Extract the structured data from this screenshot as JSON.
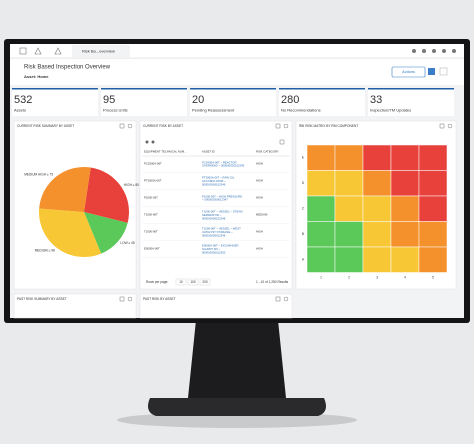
{
  "toolbar": {
    "tab": "Risk Ba...overview"
  },
  "header": {
    "title": "Risk Based Inspection Overview",
    "asset": "Asset: Home",
    "actions": "Actions"
  },
  "kpis": [
    {
      "value": "532",
      "label": "Assets"
    },
    {
      "value": "95",
      "label": "Process Units"
    },
    {
      "value": "20",
      "label": "Pending Reassessment"
    },
    {
      "value": "280",
      "label": "No Recommendations"
    },
    {
      "value": "33",
      "label": "Inspection/TM Updates"
    }
  ],
  "pie_panel": {
    "title": "CURRENT RISK SUMMARY BY ASSET",
    "chart_data": {
      "type": "pie",
      "slices": [
        {
          "label": "HIGH ≥ 80",
          "value": 80,
          "color": "#e8413c"
        },
        {
          "label": "LOW ≥ 45",
          "value": 45,
          "color": "#5bc85a"
        },
        {
          "label": "MEDIUM ≥ 98",
          "value": 98,
          "color": "#f7c736"
        },
        {
          "label": "MEDIUM HIGH ≥ 79",
          "value": 79,
          "color": "#f4912c"
        }
      ]
    }
  },
  "table_panel": {
    "title": "CURRENT RISK BY ASSET",
    "columns": [
      "EQUIPMENT TECHNICAL NUM...",
      "ASSET ID",
      "RISK CATEGORY"
    ],
    "rows": [
      [
        "PC2000A-06T",
        "PC2000A-06T ~ REACTOR OVERHEAD ~ 000000000012345",
        "HIGH"
      ],
      [
        "PT2000A-06T",
        "PT2000A-06T ~ RAW OIL ACCUMULATOR ~ 000000000012346",
        "HIGH"
      ],
      [
        "P1000-06T",
        "P1000-06T ~ HIGH PRESSURE ~ 000000000012347",
        "HIGH"
      ],
      [
        "T1000-06T",
        "T1000-06T ~ VESSEL ~ STEAM SEPARATOR ~ 000000000012348",
        "MEDIUM"
      ],
      [
        "T1000-06T",
        "T1000-06T ~ VESSEL ~ WEST CATALYST STORAGE ~ 000000000012349",
        "HIGH"
      ],
      [
        "E0000A-06T",
        "E0000A-06T ~ EXCHANGER SLURRY RX ~ 000000000012350",
        "HIGH"
      ]
    ],
    "rows_per_page": "Rows per page:",
    "page_sizes": [
      "10",
      "100",
      "200"
    ],
    "results": "1 - 10 of 1,250 Results"
  },
  "matrix_panel": {
    "title": "RBI RISK MATRIX BY RBI COMPONENT",
    "row_labels": [
      "E",
      "D",
      "C",
      "B",
      "A"
    ],
    "col_labels": [
      "1",
      "2",
      "3",
      "4",
      "5"
    ],
    "cells": [
      [
        "#f4912c",
        "#f4912c",
        "#e8413c",
        "#e8413c",
        "#e8413c"
      ],
      [
        "#f7c736",
        "#f7c736",
        "#f4912c",
        "#e8413c",
        "#e8413c"
      ],
      [
        "#5bc85a",
        "#f7c736",
        "#f7c736",
        "#f4912c",
        "#e8413c"
      ],
      [
        "#5bc85a",
        "#5bc85a",
        "#f7c736",
        "#f4912c",
        "#f4912c"
      ],
      [
        "#5bc85a",
        "#5bc85a",
        "#f7c736",
        "#f7c736",
        "#f4912c"
      ]
    ]
  },
  "bottom_panels": [
    "PAST RISK SUMMARY BY ASSET",
    "PAST RISK BY ASSET"
  ]
}
